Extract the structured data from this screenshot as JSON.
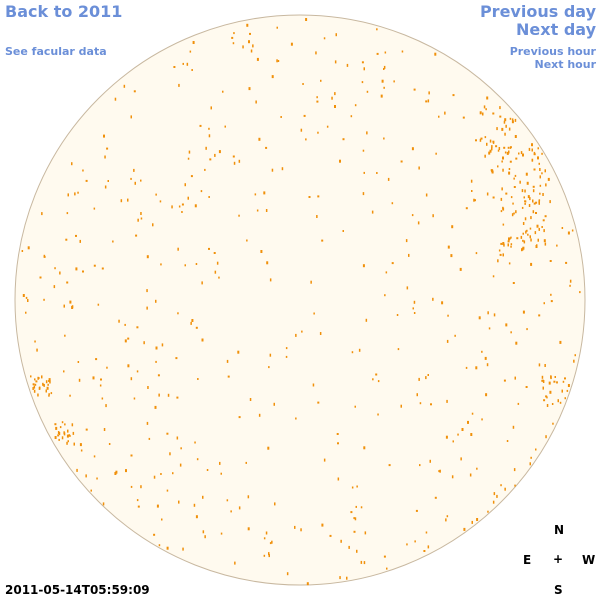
{
  "nav": {
    "back_label": "Back to 2011",
    "see_facular_label": "See facular data",
    "prev_day_label": "Previous day",
    "next_day_label": "Next day",
    "prev_hour_label": "Previous hour",
    "next_hour_label": "Next hour"
  },
  "compass": {
    "north": "N",
    "east": "E",
    "center": "+",
    "west": "W",
    "south": "S"
  },
  "timestamp": "2011-05-14T05:59:09",
  "colors": {
    "link": "#6b8fd8",
    "disk_fill": "#fffaef",
    "disk_border": "#c8b8a0",
    "facula": "#f0900a"
  }
}
